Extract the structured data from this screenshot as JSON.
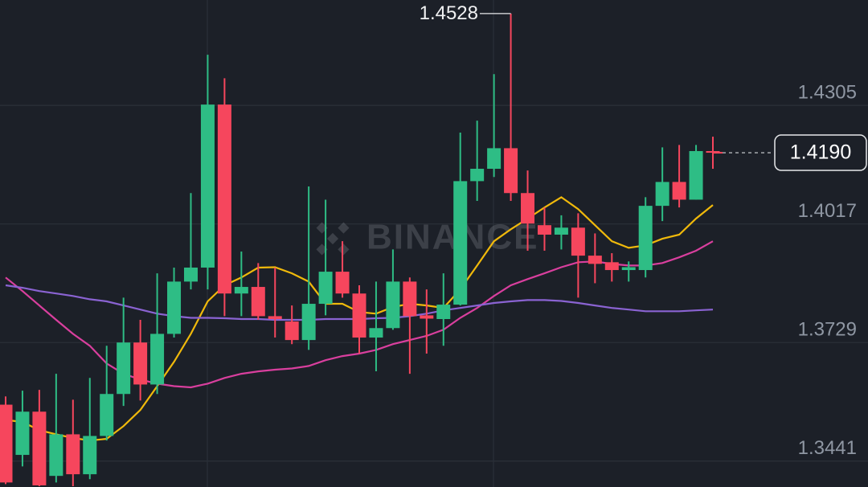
{
  "chart_data": {
    "type": "candlestick",
    "watermark": "BINANCE",
    "ylim": [
      1.3378,
      1.4561
    ],
    "yticks": [
      1.4305,
      1.4017,
      1.3729,
      1.3441
    ],
    "grid": true,
    "up_color": "#2ebd85",
    "down_color": "#f6465d",
    "open": [
      1.3578,
      1.3456,
      1.3561,
      1.3405,
      1.3506,
      1.3409,
      1.3502,
      1.3604,
      1.3729,
      1.3627,
      1.375,
      1.3877,
      1.3911,
      1.4307,
      1.3848,
      1.3864,
      1.3793,
      1.378,
      1.3735,
      1.3823,
      1.3901,
      1.3848,
      1.3741,
      1.3764,
      1.3877,
      1.3795,
      1.3786,
      1.3821,
      1.4121,
      1.4151,
      1.4201,
      1.4092,
      1.4014,
      1.3991,
      1.4008,
      1.394,
      1.3924,
      1.3905,
      1.3905,
      1.4061,
      1.4119,
      1.4076,
      1.4194
    ],
    "high": [
      1.3598,
      1.3612,
      1.3614,
      1.3653,
      1.359,
      1.3643,
      1.3721,
      1.3838,
      1.3784,
      1.3897,
      1.3911,
      1.4092,
      1.4428,
      1.4371,
      1.395,
      1.3922,
      1.3911,
      1.3819,
      1.4108,
      1.4076,
      1.3975,
      1.3868,
      1.3877,
      1.3955,
      1.3887,
      1.3858,
      1.3897,
      1.4239,
      1.4268,
      1.4381,
      1.4528,
      1.4147,
      1.4057,
      1.4038,
      1.4043,
      1.3994,
      1.3946,
      1.3926,
      1.4082,
      1.4203,
      1.4209,
      1.4209,
      1.4229
    ],
    "low": [
      1.3385,
      1.3428,
      1.338,
      1.3389,
      1.338,
      1.3397,
      1.3491,
      1.3575,
      1.3588,
      1.3604,
      1.3741,
      1.3858,
      1.3858,
      1.3793,
      1.3793,
      1.3784,
      1.3741,
      1.3725,
      1.3711,
      1.3795,
      1.3838,
      1.3702,
      1.3659,
      1.376,
      1.3653,
      1.3702,
      1.3721,
      1.3819,
      1.4073,
      1.4131,
      1.4073,
      1.3952,
      1.3952,
      1.3955,
      1.3838,
      1.3873,
      1.3877,
      1.3877,
      1.3887,
      1.4024,
      1.4057,
      1.4076,
      1.4151
    ],
    "close": [
      1.3389,
      1.3561,
      1.3382,
      1.3506,
      1.3409,
      1.3502,
      1.3604,
      1.3729,
      1.3627,
      1.375,
      1.3877,
      1.3911,
      1.4307,
      1.3848,
      1.3864,
      1.3793,
      1.3786,
      1.3735,
      1.3823,
      1.3901,
      1.3848,
      1.3741,
      1.3764,
      1.3877,
      1.3793,
      1.3787,
      1.3821,
      1.4121,
      1.4151,
      1.4201,
      1.4092,
      1.4018,
      1.3991,
      1.4008,
      1.394,
      1.392,
      1.3905,
      1.3912,
      1.4061,
      1.4119,
      1.4076,
      1.4194,
      1.419
    ],
    "lines": [
      {
        "color": "#f0b90b",
        "values": [
          1.3541,
          1.3536,
          1.3516,
          1.3506,
          1.3497,
          1.3491,
          1.3495,
          1.3526,
          1.3565,
          1.3623,
          1.3682,
          1.375,
          1.3829,
          1.3868,
          1.3887,
          1.3911,
          1.3912,
          1.3897,
          1.3877,
          1.3823,
          1.3823,
          1.3803,
          1.3799,
          1.3815,
          1.3823,
          1.3819,
          1.3813,
          1.3858,
          1.3916,
          1.3975,
          1.4004,
          1.403,
          1.4057,
          1.4082,
          1.4053,
          1.4014,
          1.3975,
          1.3959,
          1.3965,
          1.3981,
          1.3991,
          1.403,
          1.4063
        ]
      },
      {
        "color": "#d93f9e",
        "values": [
          1.3887,
          1.3854,
          1.3819,
          1.3784,
          1.375,
          1.3721,
          1.3678,
          1.3653,
          1.3639,
          1.3629,
          1.3623,
          1.362,
          1.3629,
          1.3643,
          1.3653,
          1.3659,
          1.3663,
          1.3666,
          1.3672,
          1.3686,
          1.3696,
          1.3702,
          1.3711,
          1.3725,
          1.3735,
          1.3745,
          1.376,
          1.3789,
          1.3813,
          1.3842,
          1.3868,
          1.3883,
          1.3897,
          1.3912,
          1.3924,
          1.3926,
          1.392,
          1.3916,
          1.3916,
          1.3922,
          1.3936,
          1.3952,
          1.3975
        ]
      },
      {
        "color": "#8a63d2",
        "values": [
          1.3868,
          1.3862,
          1.3854,
          1.3848,
          1.3842,
          1.3834,
          1.3829,
          1.3819,
          1.3809,
          1.3799,
          1.3793,
          1.3789,
          1.3789,
          1.3788,
          1.3786,
          1.3786,
          1.3784,
          1.3784,
          1.3784,
          1.3786,
          1.3786,
          1.3786,
          1.3788,
          1.3789,
          1.3793,
          1.3799,
          1.3807,
          1.3813,
          1.3819,
          1.3825,
          1.3829,
          1.3832,
          1.3832,
          1.383,
          1.3825,
          1.3819,
          1.3813,
          1.3809,
          1.3805,
          1.3805,
          1.3805,
          1.3807,
          1.3809
        ]
      }
    ],
    "current_price": {
      "value": 1.419,
      "label": "1.4190"
    }
  }
}
